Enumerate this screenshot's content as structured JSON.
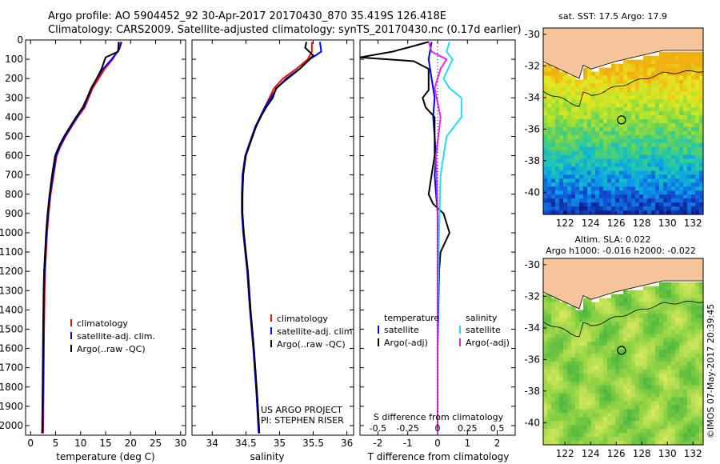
{
  "header": {
    "line1": "Argo profile: AO 5904452_92 30-Apr-2017 20170430_870 35.419S 126.418E",
    "line2": "Climatology: CARS2009. Satellite-adjusted climatology: synTS_20170430.nc (0.17d earlier)"
  },
  "colors": {
    "climatology": "#ff0000",
    "satellite": "#0000ff",
    "argo": "#000000",
    "sat_diff": "#22ddee",
    "argo_adj_diff": "#ee22ee",
    "land": "#f5c49a"
  },
  "chart_data": [
    {
      "type": "line",
      "name": "temperature-profile",
      "xlabel": "temperature (deg C)",
      "ylabel": "",
      "xlim": [
        -1,
        31
      ],
      "ylim": [
        2050,
        0
      ],
      "xticks": [
        0,
        5,
        10,
        15,
        20,
        25,
        30
      ],
      "yticks": [
        0,
        100,
        200,
        300,
        400,
        500,
        600,
        700,
        800,
        900,
        1000,
        1100,
        1200,
        1300,
        1400,
        1500,
        1600,
        1700,
        1800,
        1900,
        2000
      ],
      "legend": [
        "climatology",
        "satellite-adj. clim.",
        "Argo(..raw -QC)"
      ],
      "series": [
        {
          "name": "climatology",
          "x": [
            18.0,
            17.6,
            16.4,
            14.8,
            13.6,
            12.4,
            11.6,
            10.8,
            9.4,
            8.2,
            7.0,
            6.0,
            5.2,
            4.6,
            4.0,
            3.6,
            3.3,
            3.1,
            2.9,
            2.8,
            2.7,
            2.6,
            2.5
          ],
          "y": [
            10,
            50,
            100,
            150,
            200,
            250,
            300,
            350,
            400,
            450,
            500,
            550,
            600,
            700,
            800,
            900,
            1000,
            1100,
            1200,
            1300,
            1500,
            1800,
            2040
          ]
        },
        {
          "name": "satellite-adj. clim.",
          "x": [
            18.2,
            17.7,
            16.2,
            14.5,
            13.2,
            12.2,
            11.4,
            10.6,
            9.3,
            8.1,
            6.9,
            5.9,
            5.1,
            4.5,
            3.9,
            3.5,
            3.2,
            3.0,
            2.8,
            2.7,
            2.6,
            2.5,
            2.4
          ],
          "y": [
            10,
            50,
            100,
            150,
            200,
            250,
            300,
            350,
            400,
            450,
            500,
            550,
            600,
            700,
            800,
            900,
            1000,
            1100,
            1200,
            1300,
            1500,
            1800,
            2040
          ]
        },
        {
          "name": "Argo(..raw -QC)",
          "x": [
            17.6,
            17.5,
            15.0,
            14.2,
            13.2,
            12.1,
            11.3,
            10.4,
            9.1,
            7.9,
            6.7,
            5.7,
            4.9,
            4.3,
            3.8,
            3.4,
            3.1,
            2.9,
            2.7,
            2.6,
            2.5,
            2.4,
            2.3
          ],
          "y": [
            10,
            60,
            90,
            150,
            200,
            250,
            300,
            350,
            400,
            450,
            500,
            550,
            600,
            700,
            800,
            900,
            1000,
            1100,
            1200,
            1300,
            1500,
            1800,
            2040
          ]
        }
      ]
    },
    {
      "type": "line",
      "name": "salinity-profile",
      "xlabel": "salinity",
      "xlim": [
        33.7,
        36.1
      ],
      "ylim": [
        2050,
        0
      ],
      "xticks": [
        34,
        34.5,
        35,
        35.5,
        36
      ],
      "legend": [
        "climatology",
        "satellite-adj. clim.",
        "Argo(..raw -QC)"
      ],
      "annotation": [
        "US ARGO PROJECT",
        "PI: STEPHEN RISER"
      ],
      "series": [
        {
          "name": "climatology",
          "x": [
            35.48,
            35.48,
            35.42,
            35.25,
            35.05,
            34.92,
            34.85,
            34.78,
            34.72,
            34.65,
            34.6,
            34.55,
            34.5,
            34.46,
            34.45,
            34.45,
            34.47,
            34.5,
            34.53,
            34.57,
            34.62,
            34.67,
            34.7
          ],
          "y": [
            10,
            60,
            100,
            150,
            200,
            250,
            300,
            350,
            400,
            450,
            500,
            550,
            600,
            700,
            800,
            900,
            1000,
            1100,
            1200,
            1400,
            1600,
            1850,
            2040
          ]
        },
        {
          "name": "satellite-adj. clim.",
          "x": [
            35.6,
            35.62,
            35.45,
            35.3,
            35.1,
            34.96,
            34.87,
            34.78,
            34.71,
            34.64,
            34.59,
            34.54,
            34.49,
            34.45,
            34.44,
            34.44,
            34.46,
            34.49,
            34.52,
            34.56,
            34.61,
            34.66,
            34.69
          ],
          "y": [
            10,
            60,
            100,
            150,
            200,
            250,
            300,
            350,
            400,
            450,
            500,
            550,
            600,
            700,
            800,
            900,
            1000,
            1100,
            1200,
            1400,
            1600,
            1850,
            2040
          ]
        },
        {
          "name": "Argo(..raw -QC)",
          "x": [
            35.4,
            35.38,
            35.5,
            35.3,
            35.12,
            34.95,
            34.9,
            34.8,
            34.72,
            34.65,
            34.6,
            34.55,
            34.5,
            34.46,
            34.45,
            34.45,
            34.47,
            34.5,
            34.53,
            34.57,
            34.62,
            34.67,
            34.7
          ],
          "y": [
            10,
            40,
            80,
            150,
            200,
            250,
            300,
            350,
            400,
            450,
            500,
            550,
            600,
            700,
            800,
            900,
            1000,
            1100,
            1200,
            1400,
            1600,
            1850,
            2040
          ]
        }
      ]
    },
    {
      "type": "line",
      "name": "difference-profile",
      "xlabel": "T difference from climatology",
      "xlabel_top": "S difference from climatology",
      "xlim": [
        -2.6,
        2.6
      ],
      "ylim": [
        2050,
        0
      ],
      "xticks": [
        -2,
        -1,
        0,
        1,
        2
      ],
      "xticks_s": [
        "-0.5",
        "-0.25",
        "0",
        "0.25",
        "0.5"
      ],
      "legend": {
        "temperature": "temperature",
        "salinity": "salinity",
        "satellite": "satellite",
        "argo_adj": "Argo(-adj)"
      },
      "series": [
        {
          "name": "temperature satellite",
          "x": [
            -0.2,
            -0.3,
            -0.2,
            -0.1,
            -0.15,
            -0.1,
            -0.05,
            -0.1,
            -0.05,
            0,
            0.05,
            0,
            0
          ],
          "y": [
            10,
            100,
            200,
            300,
            400,
            500,
            600,
            700,
            800,
            900,
            1200,
            1600,
            2040
          ]
        },
        {
          "name": "temperature Argo(-adj)",
          "x": [
            -0.3,
            -1.5,
            -2.6,
            -0.8,
            -0.3,
            -0.3,
            -0.3,
            -0.5,
            -0.4,
            -0.1,
            -0.1,
            -0.1,
            -0.2,
            -0.3,
            -0.15,
            0.2,
            0.4,
            0.1,
            0.05,
            0,
            0,
            0
          ],
          "y": [
            10,
            60,
            90,
            110,
            150,
            200,
            260,
            300,
            350,
            400,
            500,
            600,
            700,
            800,
            850,
            900,
            1000,
            1100,
            1200,
            1400,
            1700,
            2040
          ]
        },
        {
          "name": "salinity satellite",
          "x": [
            0.4,
            0.3,
            0.5,
            0.2,
            0.4,
            0.8,
            0.8,
            0.3,
            0.1,
            0.05,
            0,
            0
          ],
          "y": [
            10,
            60,
            100,
            200,
            250,
            300,
            400,
            500,
            700,
            1000,
            1500,
            2040
          ]
        },
        {
          "name": "salinity Argo(-adj)",
          "x": [
            -0.3,
            -0.2,
            0.3,
            0.1,
            -0.1,
            0.1,
            -0.05,
            0,
            0,
            0
          ],
          "y": [
            10,
            60,
            100,
            150,
            250,
            400,
            600,
            900,
            1400,
            2040
          ]
        }
      ]
    },
    {
      "type": "heatmap",
      "name": "sst-map",
      "title": "sat. SST: 17.5  Argo: 17.9",
      "xlim": [
        120.3,
        132.8
      ],
      "ylim": [
        -41.4,
        -29.6
      ],
      "xticks": [
        122,
        124,
        126,
        128,
        130,
        132
      ],
      "yticks": [
        -30,
        -32,
        -34,
        -36,
        -38,
        -40
      ],
      "marker": {
        "lon": 126.418,
        "lat": -35.419
      }
    },
    {
      "type": "heatmap",
      "name": "sla-map",
      "title_lines": [
        "Altim. SLA: 0.022",
        "Argo h1000: -0.016 h2000: -0.022"
      ],
      "xlim": [
        120.3,
        132.8
      ],
      "ylim": [
        -41.4,
        -29.6
      ],
      "xticks": [
        122,
        124,
        126,
        128,
        130,
        132
      ],
      "yticks": [
        -30,
        -32,
        -34,
        -36,
        -38,
        -40
      ],
      "marker": {
        "lon": 126.418,
        "lat": -35.419
      }
    }
  ],
  "footer": {
    "stamp": "©IMOS 07-May-2017 20:39:45"
  }
}
